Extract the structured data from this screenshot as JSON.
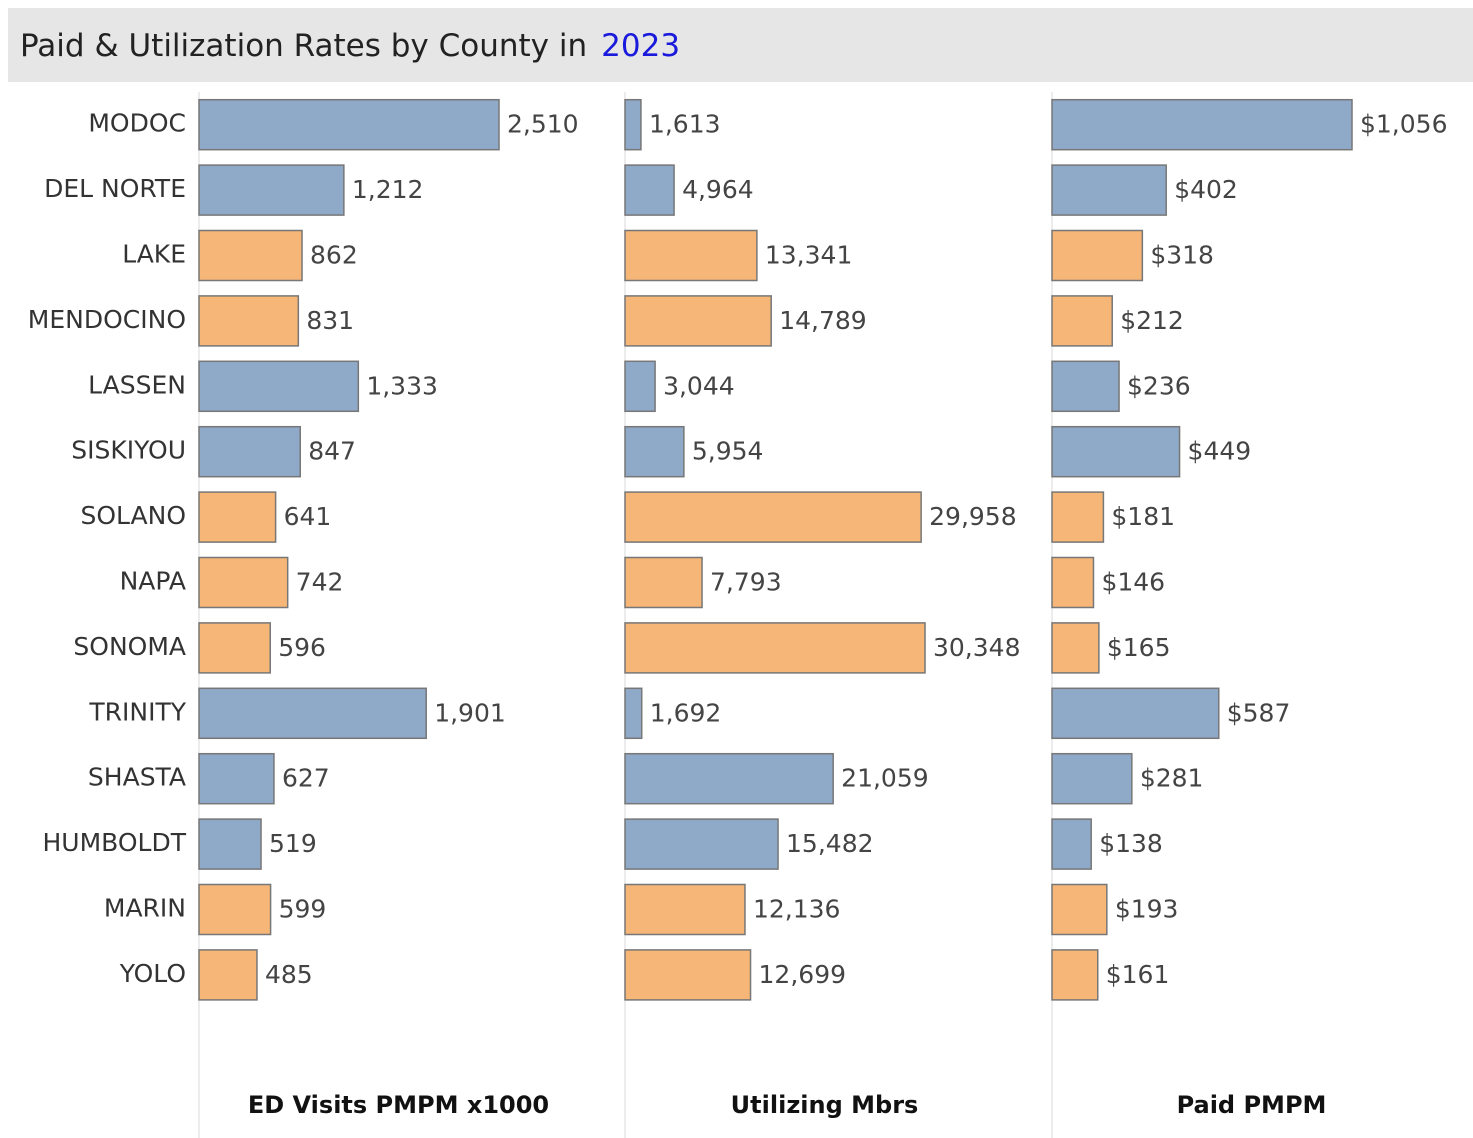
{
  "chart_data": {
    "type": "bar",
    "orientation": "horizontal",
    "title": "Paid & Utilization Rates by County in",
    "title_highlight": "2023",
    "categories": [
      "MODOC",
      "DEL NORTE",
      "LAKE",
      "MENDOCINO",
      "LASSEN",
      "SISKIYOU",
      "SOLANO",
      "NAPA",
      "SONOMA",
      "TRINITY",
      "SHASTA",
      "HUMBOLDT",
      "MARIN",
      "YOLO"
    ],
    "colors": [
      "#8fa9c8",
      "#8fa9c8",
      "#f5b677",
      "#f5b677",
      "#8fa9c8",
      "#8fa9c8",
      "#f5b677",
      "#f5b677",
      "#f5b677",
      "#8fa9c8",
      "#8fa9c8",
      "#8fa9c8",
      "#f5b677",
      "#f5b677"
    ],
    "series": [
      {
        "name": "ED Visits PMPM x1000",
        "values": [
          2510,
          1212,
          862,
          831,
          1333,
          847,
          641,
          742,
          596,
          1901,
          627,
          519,
          599,
          485
        ],
        "value_labels": [
          "2,510",
          "1,212",
          "862",
          "831",
          "1,333",
          "847",
          "641",
          "742",
          "596",
          "1,901",
          "627",
          "519",
          "599",
          "485"
        ]
      },
      {
        "name": "Utilizing Mbrs",
        "values": [
          1613,
          4964,
          13341,
          14789,
          3044,
          5954,
          29958,
          7793,
          30348,
          1692,
          21059,
          15482,
          12136,
          12699
        ],
        "value_labels": [
          "1,613",
          "4,964",
          "13,341",
          "14,789",
          "3,044",
          "5,954",
          "29,958",
          "7,793",
          "30,348",
          "1,692",
          "21,059",
          "15,482",
          "12,136",
          "12,699"
        ]
      },
      {
        "name": "Paid PMPM",
        "values": [
          1056,
          402,
          318,
          212,
          236,
          449,
          181,
          146,
          165,
          587,
          281,
          138,
          193,
          161
        ],
        "value_labels": [
          "$1,056",
          "$402",
          "$318",
          "$212",
          "$236",
          "$449",
          "$181",
          "$146",
          "$165",
          "$587",
          "$281",
          "$138",
          "$193",
          "$161"
        ]
      }
    ]
  }
}
